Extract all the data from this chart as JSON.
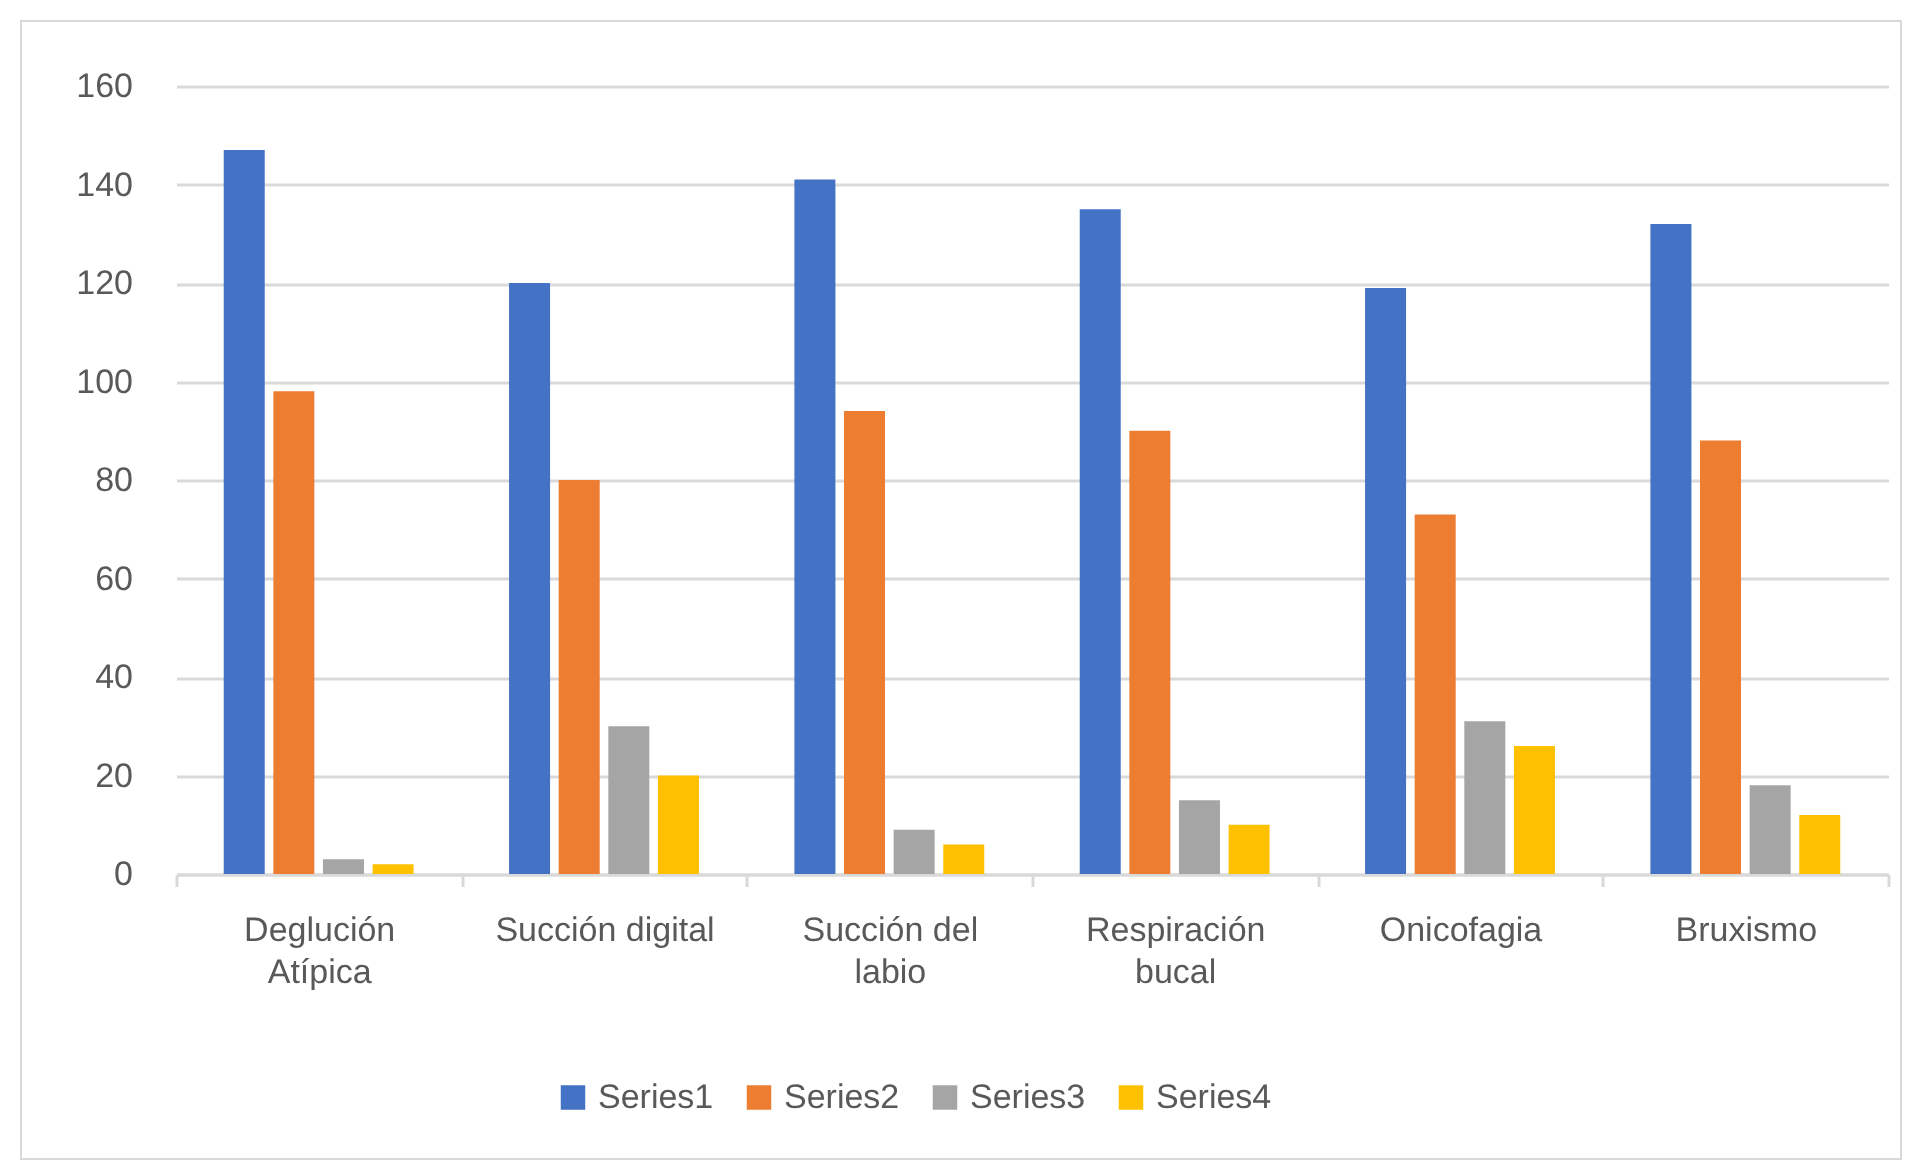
{
  "chart_data": {
    "type": "bar",
    "categories": [
      "Deglución Atípica",
      "Succión digital",
      "Succión del labio",
      "Respiración bucal",
      "Onicofagia",
      "Bruxismo"
    ],
    "series": [
      {
        "name": "Series1",
        "color": "#4472c4",
        "values": [
          147,
          120,
          141,
          135,
          119,
          132
        ]
      },
      {
        "name": "Series2",
        "color": "#ed7d31",
        "values": [
          98,
          80,
          94,
          90,
          73,
          88
        ]
      },
      {
        "name": "Series3",
        "color": "#a5a5a5",
        "values": [
          3,
          30,
          9,
          15,
          31,
          18
        ]
      },
      {
        "name": "Series4",
        "color": "#ffc000",
        "values": [
          2,
          20,
          6,
          10,
          26,
          12
        ]
      }
    ],
    "ylim": [
      0,
      160
    ],
    "yticks": [
      0,
      20,
      40,
      60,
      80,
      100,
      120,
      140,
      160
    ],
    "grid": "y",
    "legend": "bottom"
  }
}
